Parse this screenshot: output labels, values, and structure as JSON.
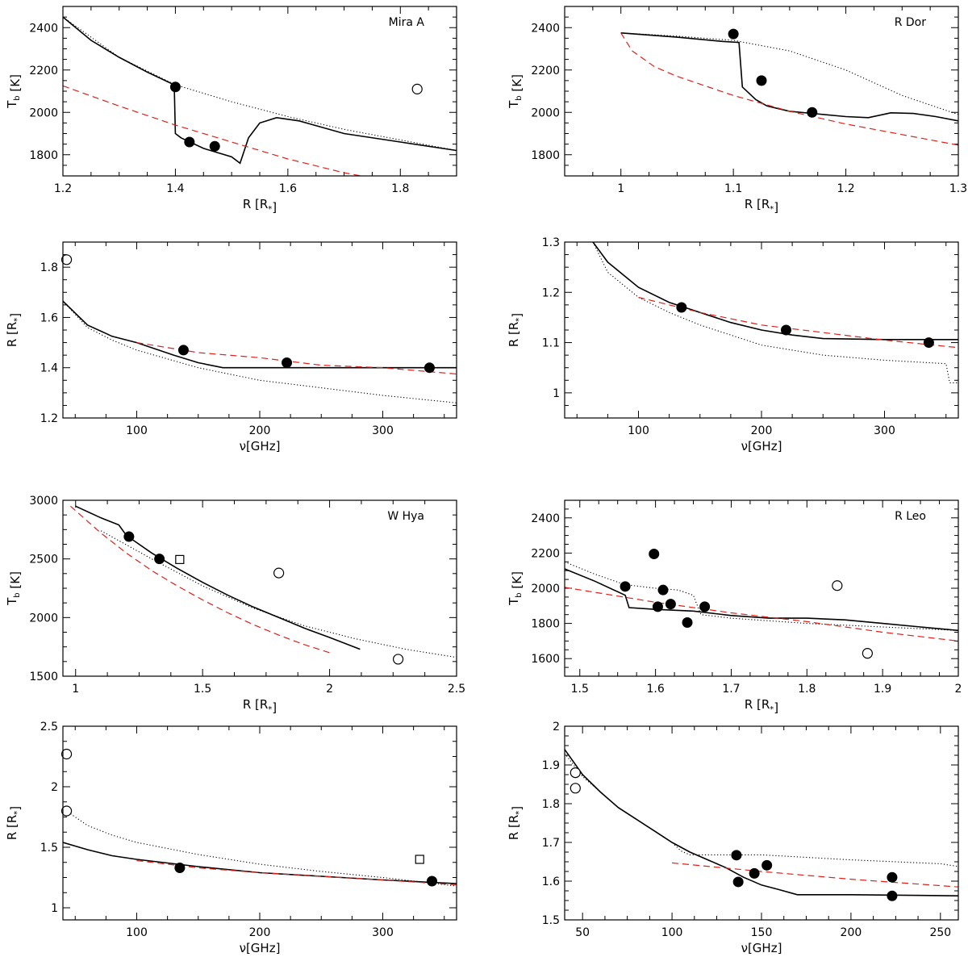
{
  "chart_data": [
    {
      "id": "mira-tb",
      "type": "line",
      "title": "Mira A",
      "xlabel": "R [R*]",
      "ylabel": "Tb [K]",
      "xlim": [
        1.2,
        1.9
      ],
      "ylim": [
        1700,
        2500
      ],
      "xticks": [
        1.2,
        1.4,
        1.6,
        1.8
      ],
      "yticks": [
        1800,
        2000,
        2200,
        2400
      ],
      "series": [
        {
          "name": "model solid",
          "style": "solid",
          "x": [
            1.2,
            1.25,
            1.3,
            1.35,
            1.398,
            1.4,
            1.41,
            1.45,
            1.5,
            1.515,
            1.53,
            1.55,
            1.58,
            1.62,
            1.7,
            1.8,
            1.9
          ],
          "y": [
            2450,
            2340,
            2260,
            2190,
            2130,
            1900,
            1880,
            1830,
            1790,
            1760,
            1880,
            1950,
            1975,
            1960,
            1900,
            1860,
            1820
          ]
        },
        {
          "name": "model dotted",
          "style": "dotted",
          "x": [
            1.2,
            1.3,
            1.4,
            1.5,
            1.6,
            1.7,
            1.8,
            1.9
          ],
          "y": [
            2450,
            2260,
            2130,
            2050,
            1980,
            1920,
            1870,
            1820
          ]
        },
        {
          "name": "model dashed",
          "style": "dashed",
          "x": [
            1.2,
            1.3,
            1.4,
            1.5,
            1.6,
            1.7,
            1.73
          ],
          "y": [
            2125,
            2030,
            1940,
            1860,
            1780,
            1715,
            1700
          ]
        }
      ],
      "points": [
        {
          "x": 1.4,
          "y": 2120,
          "marker": "filled"
        },
        {
          "x": 1.425,
          "y": 1860,
          "marker": "filled"
        },
        {
          "x": 1.47,
          "y": 1840,
          "marker": "filled"
        },
        {
          "x": 1.83,
          "y": 2110,
          "marker": "open"
        }
      ]
    },
    {
      "id": "rdor-tb",
      "type": "line",
      "title": "R Dor",
      "xlabel": "R [R*]",
      "ylabel": "Tb [K]",
      "xlim": [
        0.95,
        1.3
      ],
      "ylim": [
        1700,
        2500
      ],
      "xticks": [
        1,
        1.1,
        1.2,
        1.3
      ],
      "yticks": [
        1800,
        2000,
        2200,
        2400
      ],
      "series": [
        {
          "name": "model solid",
          "style": "solid",
          "x": [
            1.0,
            1.05,
            1.09,
            1.105,
            1.108,
            1.12,
            1.13,
            1.15,
            1.2,
            1.22,
            1.24,
            1.26,
            1.28,
            1.3
          ],
          "y": [
            2375,
            2355,
            2335,
            2330,
            2120,
            2060,
            2030,
            2005,
            1980,
            1975,
            1998,
            1995,
            1980,
            1960
          ]
        },
        {
          "name": "model dotted",
          "style": "dotted",
          "x": [
            1.0,
            1.05,
            1.1,
            1.15,
            1.2,
            1.25,
            1.3
          ],
          "y": [
            2375,
            2360,
            2340,
            2290,
            2200,
            2080,
            1990
          ]
        },
        {
          "name": "model dashed",
          "style": "dashed",
          "x": [
            1.0,
            1.01,
            1.03,
            1.05,
            1.1,
            1.15,
            1.2,
            1.25,
            1.3
          ],
          "y": [
            2375,
            2290,
            2215,
            2170,
            2080,
            2005,
            1945,
            1895,
            1845
          ]
        }
      ],
      "points": [
        {
          "x": 1.1,
          "y": 2370,
          "marker": "filled"
        },
        {
          "x": 1.125,
          "y": 2150,
          "marker": "filled"
        },
        {
          "x": 1.17,
          "y": 2000,
          "marker": "filled"
        }
      ]
    },
    {
      "id": "mira-r",
      "type": "line",
      "title": "",
      "xlabel": "ν[GHz]",
      "ylabel": "R [R*]",
      "xlim": [
        40,
        360
      ],
      "ylim": [
        1.2,
        1.9
      ],
      "xticks": [
        100,
        200,
        300
      ],
      "yticks": [
        1.2,
        1.4,
        1.6,
        1.8
      ],
      "series": [
        {
          "name": "model solid",
          "style": "solid",
          "x": [
            40,
            60,
            80,
            100,
            130,
            150,
            170,
            250,
            360
          ],
          "y": [
            1.665,
            1.57,
            1.525,
            1.5,
            1.45,
            1.42,
            1.4,
            1.4,
            1.4
          ]
        },
        {
          "name": "model dotted",
          "style": "dotted",
          "x": [
            40,
            60,
            80,
            100,
            150,
            200,
            250,
            300,
            360
          ],
          "y": [
            1.665,
            1.56,
            1.51,
            1.47,
            1.4,
            1.35,
            1.32,
            1.29,
            1.26
          ]
        },
        {
          "name": "model dashed",
          "style": "dashed",
          "x": [
            100,
            150,
            200,
            250,
            300,
            360
          ],
          "y": [
            1.5,
            1.46,
            1.44,
            1.41,
            1.4,
            1.375
          ]
        }
      ],
      "points": [
        {
          "x": 43,
          "y": 1.83,
          "marker": "open"
        },
        {
          "x": 138,
          "y": 1.47,
          "marker": "filled"
        },
        {
          "x": 222,
          "y": 1.42,
          "marker": "filled"
        },
        {
          "x": 338,
          "y": 1.4,
          "marker": "filled"
        }
      ]
    },
    {
      "id": "rdor-r",
      "type": "line",
      "title": "",
      "xlabel": "ν[GHz]",
      "ylabel": "R [R*]",
      "xlim": [
        40,
        360
      ],
      "ylim": [
        0.95,
        1.3
      ],
      "xticks": [
        100,
        200,
        300
      ],
      "yticks": [
        1,
        1.1,
        1.2,
        1.3
      ],
      "series": [
        {
          "name": "model solid",
          "style": "solid",
          "x": [
            63,
            75,
            100,
            125,
            150,
            175,
            200,
            225,
            250,
            300,
            360
          ],
          "y": [
            1.3,
            1.26,
            1.21,
            1.18,
            1.16,
            1.14,
            1.125,
            1.115,
            1.108,
            1.106,
            1.106
          ]
        },
        {
          "name": "model dotted",
          "style": "dotted",
          "x": [
            63,
            75,
            100,
            125,
            150,
            175,
            200,
            250,
            300,
            350,
            353,
            360
          ],
          "y": [
            1.3,
            1.24,
            1.19,
            1.16,
            1.135,
            1.115,
            1.095,
            1.075,
            1.065,
            1.058,
            1.02,
            1.02
          ]
        },
        {
          "name": "model dashed",
          "style": "dashed",
          "x": [
            100,
            150,
            200,
            250,
            300,
            360
          ],
          "y": [
            1.19,
            1.16,
            1.135,
            1.12,
            1.105,
            1.09
          ]
        }
      ],
      "points": [
        {
          "x": 135,
          "y": 1.17,
          "marker": "filled"
        },
        {
          "x": 220,
          "y": 1.125,
          "marker": "filled"
        },
        {
          "x": 336,
          "y": 1.1,
          "marker": "filled"
        }
      ]
    },
    {
      "id": "whya-tb",
      "type": "line",
      "title": "W Hya",
      "xlabel": "R [R*]",
      "ylabel": "Tb [K]",
      "xlim": [
        0.95,
        2.5
      ],
      "ylim": [
        1500,
        3000
      ],
      "xticks": [
        1,
        1.5,
        2,
        2.5
      ],
      "yticks": [
        1500,
        2000,
        2500,
        3000
      ],
      "series": [
        {
          "name": "model solid",
          "style": "solid",
          "x": [
            1.0,
            1.1,
            1.17,
            1.2,
            1.3,
            1.4,
            1.5,
            1.6,
            1.7,
            1.8,
            1.9,
            2.0,
            2.12
          ],
          "y": [
            2950,
            2850,
            2790,
            2700,
            2550,
            2420,
            2300,
            2190,
            2090,
            2000,
            1910,
            1830,
            1730
          ]
        },
        {
          "name": "model dotted",
          "style": "dotted",
          "x": [
            1.1,
            1.2,
            1.3,
            1.5,
            1.7,
            1.9,
            2.1,
            2.3,
            2.5
          ],
          "y": [
            2740,
            2620,
            2500,
            2270,
            2080,
            1930,
            1820,
            1730,
            1660
          ]
        },
        {
          "name": "model dashed",
          "style": "dashed",
          "x": [
            0.98,
            1.1,
            1.2,
            1.3,
            1.4,
            1.5,
            1.6,
            1.7,
            1.8,
            1.9,
            2.0
          ],
          "y": [
            2950,
            2720,
            2550,
            2400,
            2270,
            2150,
            2040,
            1940,
            1850,
            1770,
            1700
          ]
        }
      ],
      "points": [
        {
          "x": 1.21,
          "y": 2690,
          "marker": "filled"
        },
        {
          "x": 1.33,
          "y": 2500,
          "marker": "filled"
        },
        {
          "x": 1.41,
          "y": 2495,
          "marker": "square"
        },
        {
          "x": 1.8,
          "y": 2380,
          "marker": "open"
        },
        {
          "x": 2.27,
          "y": 1645,
          "marker": "open"
        }
      ]
    },
    {
      "id": "rleo-tb",
      "type": "line",
      "title": "R Leo",
      "xlabel": "R [R*]",
      "ylabel": "Tb [K]",
      "xlim": [
        1.48,
        2.0
      ],
      "ylim": [
        1500,
        2500
      ],
      "xticks": [
        1.5,
        1.6,
        1.7,
        1.8,
        1.9,
        2
      ],
      "yticks": [
        1600,
        1800,
        2000,
        2200,
        2400
      ],
      "series": [
        {
          "name": "model solid",
          "style": "solid",
          "x": [
            1.48,
            1.52,
            1.56,
            1.565,
            1.6,
            1.65,
            1.7,
            1.75,
            1.8,
            1.85,
            1.9,
            1.95,
            2.0
          ],
          "y": [
            2110,
            2040,
            1960,
            1890,
            1880,
            1870,
            1845,
            1830,
            1830,
            1820,
            1800,
            1780,
            1760
          ]
        },
        {
          "name": "model dotted",
          "style": "dotted",
          "x": [
            1.48,
            1.52,
            1.56,
            1.6,
            1.63,
            1.65,
            1.66,
            1.7,
            1.8,
            1.9,
            2.0
          ],
          "y": [
            2150,
            2080,
            2020,
            2000,
            1990,
            1960,
            1850,
            1830,
            1800,
            1780,
            1760
          ]
        },
        {
          "name": "model dashed",
          "style": "dashed",
          "x": [
            1.48,
            1.6,
            1.7,
            1.8,
            1.9,
            2.0
          ],
          "y": [
            2005,
            1920,
            1860,
            1810,
            1750,
            1700
          ]
        }
      ],
      "points": [
        {
          "x": 1.56,
          "y": 2010,
          "marker": "filled"
        },
        {
          "x": 1.598,
          "y": 2195,
          "marker": "filled"
        },
        {
          "x": 1.603,
          "y": 1895,
          "marker": "filled"
        },
        {
          "x": 1.61,
          "y": 1990,
          "marker": "filled"
        },
        {
          "x": 1.62,
          "y": 1910,
          "marker": "filled"
        },
        {
          "x": 1.642,
          "y": 1805,
          "marker": "filled"
        },
        {
          "x": 1.665,
          "y": 1895,
          "marker": "filled"
        },
        {
          "x": 1.84,
          "y": 2015,
          "marker": "open"
        },
        {
          "x": 1.88,
          "y": 1630,
          "marker": "open"
        }
      ]
    },
    {
      "id": "whya-r",
      "type": "line",
      "title": "",
      "xlabel": "ν[GHz]",
      "ylabel": "R [R*]",
      "xlim": [
        40,
        360
      ],
      "ylim": [
        0.9,
        2.5
      ],
      "xticks": [
        100,
        200,
        300
      ],
      "yticks": [
        1,
        1.5,
        2,
        2.5
      ],
      "series": [
        {
          "name": "model solid",
          "style": "solid",
          "x": [
            40,
            60,
            80,
            100,
            150,
            200,
            250,
            300,
            360
          ],
          "y": [
            1.54,
            1.48,
            1.43,
            1.4,
            1.34,
            1.29,
            1.26,
            1.23,
            1.2
          ]
        },
        {
          "name": "model dotted",
          "style": "dotted",
          "x": [
            40,
            60,
            80,
            100,
            150,
            200,
            250,
            300,
            360
          ],
          "y": [
            1.82,
            1.68,
            1.6,
            1.54,
            1.44,
            1.36,
            1.3,
            1.25,
            1.18
          ]
        },
        {
          "name": "model dashed",
          "style": "dashed",
          "x": [
            100,
            150,
            200,
            250,
            300,
            360
          ],
          "y": [
            1.39,
            1.33,
            1.29,
            1.26,
            1.23,
            1.19
          ]
        }
      ],
      "points": [
        {
          "x": 43,
          "y": 2.27,
          "marker": "open"
        },
        {
          "x": 43,
          "y": 1.8,
          "marker": "open"
        },
        {
          "x": 135,
          "y": 1.33,
          "marker": "filled"
        },
        {
          "x": 330,
          "y": 1.4,
          "marker": "square"
        },
        {
          "x": 340,
          "y": 1.22,
          "marker": "filled"
        }
      ]
    },
    {
      "id": "rleo-r",
      "type": "line",
      "title": "",
      "xlabel": "ν[GHz]",
      "ylabel": "R [R*]",
      "xlim": [
        40,
        260
      ],
      "ylim": [
        1.5,
        2.0
      ],
      "xticks": [
        50,
        100,
        150,
        200,
        250
      ],
      "yticks": [
        1.5,
        1.6,
        1.7,
        1.8,
        1.9,
        2
      ],
      "series": [
        {
          "name": "model solid",
          "style": "solid",
          "x": [
            40,
            50,
            60,
            70,
            80,
            90,
            100,
            110,
            120,
            130,
            140,
            150,
            160,
            170,
            200,
            260
          ],
          "y": [
            1.94,
            1.875,
            1.83,
            1.79,
            1.76,
            1.73,
            1.7,
            1.675,
            1.655,
            1.635,
            1.61,
            1.59,
            1.578,
            1.565,
            1.565,
            1.562
          ]
        },
        {
          "name": "model dotted",
          "style": "dotted",
          "x": [
            40,
            50,
            60,
            70,
            80,
            90,
            100,
            105,
            110,
            150,
            200,
            250,
            260
          ],
          "y": [
            1.93,
            1.87,
            1.83,
            1.79,
            1.76,
            1.73,
            1.7,
            1.678,
            1.668,
            1.668,
            1.655,
            1.645,
            1.638
          ]
        },
        {
          "name": "model dashed",
          "style": "dashed",
          "x": [
            100,
            150,
            200,
            260
          ],
          "y": [
            1.647,
            1.625,
            1.605,
            1.585
          ]
        }
      ],
      "points": [
        {
          "x": 46,
          "y": 1.88,
          "marker": "open"
        },
        {
          "x": 46,
          "y": 1.84,
          "marker": "open"
        },
        {
          "x": 136,
          "y": 1.667,
          "marker": "filled"
        },
        {
          "x": 137,
          "y": 1.598,
          "marker": "filled"
        },
        {
          "x": 146,
          "y": 1.62,
          "marker": "filled"
        },
        {
          "x": 153,
          "y": 1.641,
          "marker": "filled"
        },
        {
          "x": 223,
          "y": 1.61,
          "marker": "filled"
        },
        {
          "x": 223,
          "y": 1.562,
          "marker": "filled"
        }
      ]
    }
  ]
}
